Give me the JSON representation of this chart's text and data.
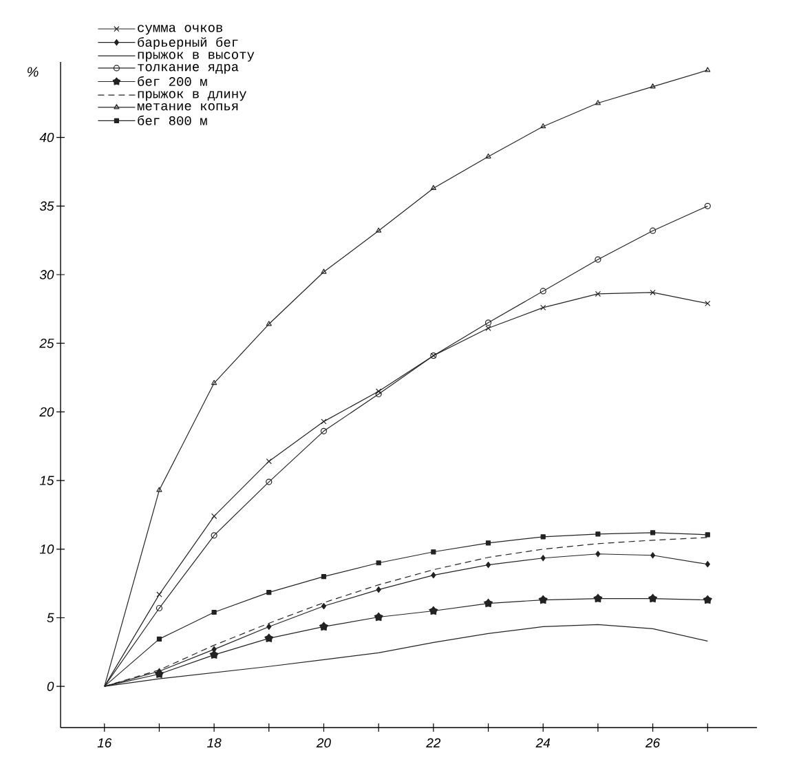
{
  "chart_data": {
    "type": "line",
    "ylabel": "%",
    "x": [
      16,
      17,
      18,
      19,
      20,
      21,
      22,
      23,
      24,
      25,
      26,
      27
    ],
    "xlim": [
      15.2,
      27.9
    ],
    "ylim": [
      -3,
      45.5
    ],
    "xticks": [
      16,
      {
        "value": 17,
        "label": null
      },
      18,
      {
        "value": 19,
        "label": null
      },
      20,
      {
        "value": 21,
        "label": null
      },
      22,
      {
        "value": 23,
        "label": null
      },
      24,
      {
        "value": 25,
        "label": null
      },
      26,
      {
        "value": 27,
        "label": null
      }
    ],
    "yticks": [
      0,
      5,
      10,
      15,
      20,
      25,
      30,
      35,
      40
    ],
    "legend": "top left",
    "grid": false,
    "series": [
      {
        "name": "сумма очков",
        "color": "#222222",
        "marker": "cross",
        "line_style": "solid",
        "values": [
          0,
          6.7,
          12.4,
          16.4,
          19.3,
          21.5,
          24.1,
          26.1,
          27.6,
          28.6,
          28.7,
          27.9
        ]
      },
      {
        "name": "барьерный бег",
        "color": "#222222",
        "marker": "diamond",
        "line_style": "solid",
        "values": [
          0,
          1.1,
          2.7,
          4.35,
          5.85,
          7.05,
          8.1,
          8.85,
          9.35,
          9.65,
          9.55,
          8.9
        ]
      },
      {
        "name": "прыжок в высоту",
        "color": "#222222",
        "marker": "none",
        "line_style": "solid",
        "values": [
          0,
          0.55,
          1.0,
          1.45,
          1.95,
          2.45,
          3.2,
          3.85,
          4.35,
          4.5,
          4.2,
          3.3
        ]
      },
      {
        "name": "толкание ядра",
        "color": "#222222",
        "marker": "circle",
        "line_style": "solid",
        "values": [
          0,
          5.7,
          11.0,
          14.9,
          18.6,
          21.3,
          24.1,
          26.5,
          28.8,
          31.1,
          33.2,
          35.0
        ]
      },
      {
        "name": "бег 200 м",
        "color": "#222222",
        "marker": "star",
        "line_style": "solid",
        "values": [
          0,
          0.9,
          2.3,
          3.5,
          4.35,
          5.05,
          5.5,
          6.05,
          6.3,
          6.4,
          6.4,
          6.3
        ]
      },
      {
        "name": "прыжок в длину",
        "color": "#222222",
        "marker": "none",
        "line_style": "dashed",
        "values": [
          0,
          1.2,
          3.0,
          4.6,
          6.1,
          7.4,
          8.5,
          9.4,
          10.0,
          10.4,
          10.65,
          10.85
        ]
      },
      {
        "name": "метание копья",
        "color": "#222222",
        "marker": "triangle",
        "line_style": "solid",
        "values": [
          0,
          14.3,
          22.1,
          26.4,
          30.2,
          33.2,
          36.3,
          38.6,
          40.8,
          42.5,
          43.7,
          44.9
        ]
      },
      {
        "name": "бег 800 м",
        "color": "#222222",
        "marker": "square",
        "line_style": "solid",
        "values": [
          0,
          3.45,
          5.4,
          6.85,
          8.0,
          9.0,
          9.8,
          10.45,
          10.9,
          11.1,
          11.2,
          11.05
        ]
      }
    ]
  }
}
